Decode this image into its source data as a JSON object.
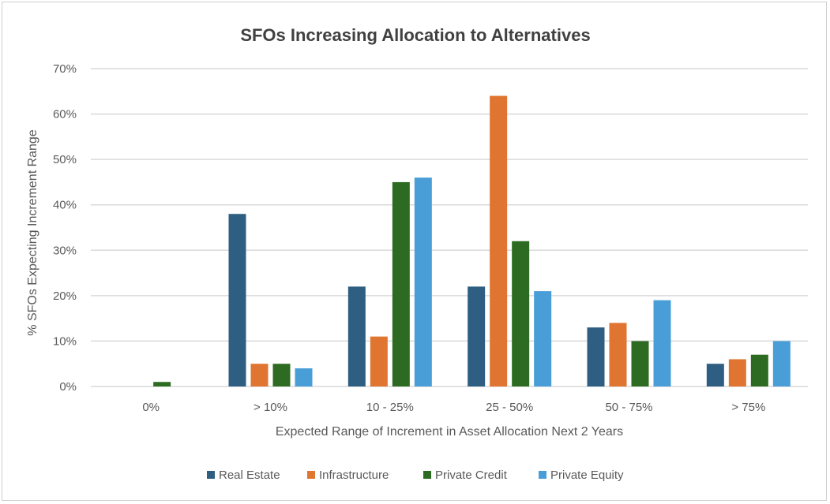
{
  "chart_data": {
    "type": "bar",
    "title": "SFOs Increasing Allocation to Alternatives",
    "xlabel": "Expected Range of Increment in Asset Allocation Next 2 Years",
    "ylabel": "% SFOs Expecting Increment Range",
    "categories": [
      "0%",
      "> 10%",
      "10 - 25%",
      "25 - 50%",
      "50 - 75%",
      "> 75%"
    ],
    "ylim": [
      0,
      70
    ],
    "yticks": [
      "0%",
      "10%",
      "20%",
      "30%",
      "40%",
      "50%",
      "60%",
      "70%"
    ],
    "grid": true,
    "legend": "bottom",
    "series": [
      {
        "name": "Real Estate",
        "color": "#2e5f82",
        "values": [
          0,
          38,
          22,
          22,
          13,
          5
        ]
      },
      {
        "name": "Infrastructure",
        "color": "#df7530",
        "values": [
          0,
          5,
          11,
          64,
          14,
          6
        ]
      },
      {
        "name": "Private Credit",
        "color": "#2e6b22",
        "values": [
          1,
          5,
          45,
          32,
          10,
          7
        ]
      },
      {
        "name": "Private Equity",
        "color": "#4a9ed8",
        "values": [
          0,
          4,
          46,
          21,
          19,
          10
        ]
      }
    ]
  }
}
